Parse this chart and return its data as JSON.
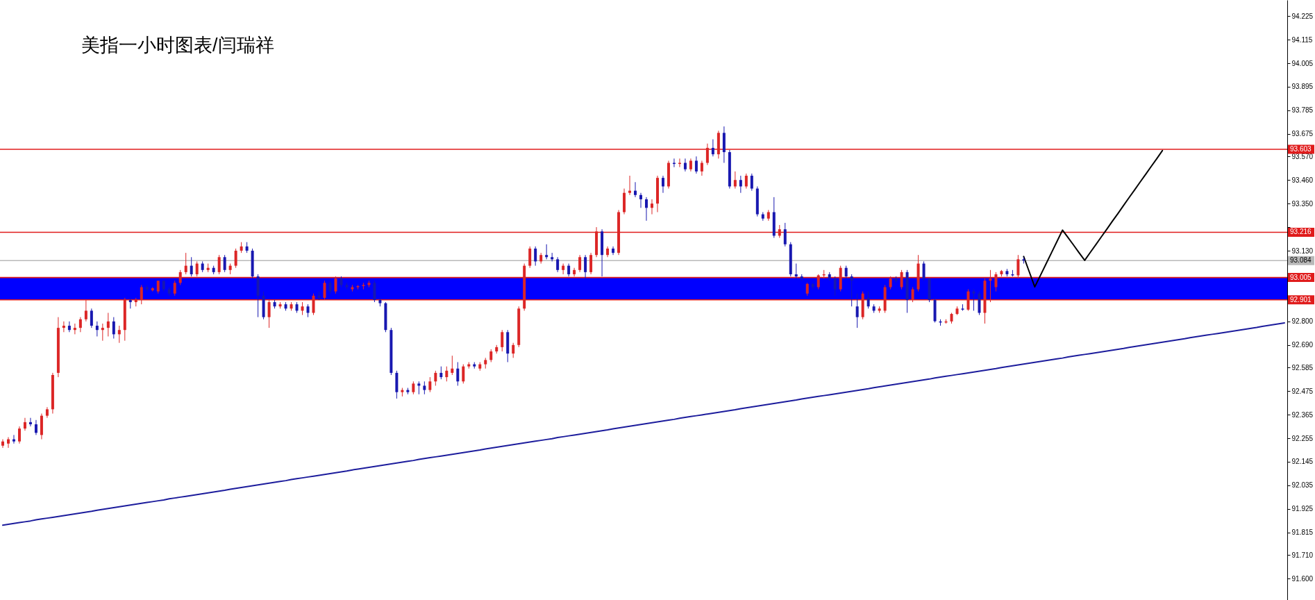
{
  "chart_data": {
    "type": "candlestick",
    "title": "美指一小时图表/闫瑞祥",
    "categories": [
      null,
      null,
      null,
      null,
      null,
      null,
      null,
      null,
      null,
      null,
      null,
      null,
      null,
      null,
      null,
      null,
      null,
      null,
      null,
      null,
      null,
      null,
      null,
      null,
      null,
      null,
      null,
      null,
      null,
      null,
      null,
      null,
      null,
      null,
      null,
      null,
      null,
      null,
      null,
      null,
      null,
      null,
      null,
      null,
      null,
      null,
      null,
      null,
      null,
      null,
      null,
      null,
      null,
      null,
      null,
      null,
      null,
      null,
      null,
      null,
      null,
      null,
      null,
      null,
      null,
      null,
      null,
      null,
      null,
      null,
      null,
      null,
      null,
      null,
      null,
      null,
      null,
      null,
      null,
      null,
      null,
      null,
      null,
      null,
      null,
      null,
      null,
      null,
      null,
      null,
      null,
      null,
      null,
      null,
      null,
      null,
      null,
      null,
      null,
      null,
      null,
      null,
      null,
      null,
      null,
      null,
      null,
      null,
      null,
      null,
      null,
      null,
      null,
      null,
      null,
      null,
      null,
      null,
      null,
      null,
      null,
      null,
      null,
      null,
      null,
      null,
      null,
      null,
      null,
      null,
      null,
      null,
      null,
      null,
      null,
      null,
      null,
      null,
      null,
      null,
      null,
      null,
      null,
      null,
      null,
      null,
      null,
      null,
      null,
      null,
      null,
      null,
      null,
      null,
      null,
      null,
      null,
      null,
      null,
      null,
      null,
      null,
      null,
      null,
      null,
      null,
      null,
      null,
      null,
      null,
      null,
      null,
      null,
      null,
      null,
      null,
      null,
      null,
      null,
      null,
      null,
      null,
      null,
      null,
      null,
      null,
      null,
      null,
      null,
      null,
      null,
      null,
      null,
      null,
      null,
      null,
      null,
      null,
      null,
      null,
      null,
      null,
      null,
      null,
      null,
      null,
      null,
      null,
      null,
      null,
      null,
      null,
      null,
      null,
      null,
      null,
      null,
      null,
      null,
      null,
      null,
      null,
      null,
      null,
      null,
      null,
      null,
      null,
      null,
      null,
      null,
      null
    ],
    "ohlc": [
      [
        92.22,
        92.25,
        92.21,
        92.24
      ],
      [
        92.23,
        92.26,
        92.21,
        92.25
      ],
      [
        92.25,
        92.27,
        92.23,
        92.24
      ],
      [
        92.24,
        92.31,
        92.23,
        92.3
      ],
      [
        92.3,
        92.35,
        92.29,
        92.33
      ],
      [
        92.33,
        92.35,
        92.31,
        92.32
      ],
      [
        92.32,
        92.34,
        92.27,
        92.28
      ],
      [
        92.27,
        92.37,
        92.25,
        92.36
      ],
      [
        92.36,
        92.4,
        92.35,
        92.39
      ],
      [
        92.39,
        92.56,
        92.37,
        92.55
      ],
      [
        92.56,
        92.82,
        92.54,
        92.77
      ],
      [
        92.77,
        92.8,
        92.75,
        92.78
      ],
      [
        92.78,
        92.8,
        92.75,
        92.76
      ],
      [
        92.76,
        92.79,
        92.74,
        92.77
      ],
      [
        92.77,
        92.82,
        92.75,
        92.81
      ],
      [
        92.81,
        92.9,
        92.8,
        92.85
      ],
      [
        92.85,
        92.86,
        92.77,
        92.78
      ],
      [
        92.78,
        92.8,
        92.73,
        92.76
      ],
      [
        92.76,
        92.79,
        92.71,
        92.77
      ],
      [
        92.77,
        92.84,
        92.73,
        92.8
      ],
      [
        92.8,
        92.82,
        92.72,
        92.74
      ],
      [
        92.74,
        92.78,
        92.7,
        92.76
      ],
      [
        92.76,
        92.91,
        92.71,
        92.9
      ],
      [
        92.9,
        92.91,
        92.86,
        92.89
      ],
      [
        92.89,
        92.91,
        92.87,
        92.9
      ],
      [
        92.9,
        92.97,
        92.88,
        92.96
      ],
      [
        92.96,
        92.97,
        92.94,
        92.95
      ],
      [
        92.945,
        92.96,
        92.94,
        92.955
      ],
      [
        92.94,
        92.99,
        92.93,
        92.99
      ],
      [
        92.99,
        92.99,
        92.94,
        92.95
      ],
      [
        92.95,
        92.96,
        92.92,
        92.93
      ],
      [
        92.93,
        92.99,
        92.92,
        92.98
      ],
      [
        92.98,
        93.04,
        92.97,
        93.03
      ],
      [
        93.03,
        93.12,
        93.02,
        93.06
      ],
      [
        93.06,
        93.1,
        93.01,
        93.02
      ],
      [
        93.02,
        93.08,
        93.01,
        93.07
      ],
      [
        93.07,
        93.08,
        93.03,
        93.04
      ],
      [
        93.04,
        93.07,
        93.03,
        93.05
      ],
      [
        93.05,
        93.06,
        93.02,
        93.03
      ],
      [
        93.03,
        93.11,
        93.02,
        93.1
      ],
      [
        93.1,
        93.11,
        93.03,
        93.04
      ],
      [
        93.04,
        93.07,
        93.02,
        93.06
      ],
      [
        93.06,
        93.14,
        93.05,
        93.13
      ],
      [
        93.13,
        93.17,
        93.12,
        93.15
      ],
      [
        93.15,
        93.17,
        93.12,
        93.13
      ],
      [
        93.13,
        93.14,
        93.0,
        93.01
      ],
      [
        93.01,
        93.02,
        92.82,
        92.92
      ],
      [
        92.92,
        92.94,
        92.81,
        92.82
      ],
      [
        92.82,
        92.9,
        92.77,
        92.89
      ],
      [
        92.89,
        92.9,
        92.86,
        92.87
      ],
      [
        92.87,
        92.89,
        92.86,
        92.88
      ],
      [
        92.88,
        92.89,
        92.85,
        92.86
      ],
      [
        92.86,
        92.89,
        92.85,
        92.88
      ],
      [
        92.88,
        92.89,
        92.84,
        92.85
      ],
      [
        92.85,
        92.89,
        92.83,
        92.87
      ],
      [
        92.87,
        92.88,
        92.82,
        92.84
      ],
      [
        92.84,
        92.93,
        92.83,
        92.92
      ],
      [
        92.92,
        92.94,
        92.9,
        92.91
      ],
      [
        92.91,
        92.99,
        92.9,
        92.98
      ],
      [
        92.98,
        92.99,
        92.93,
        92.94
      ],
      [
        92.94,
        93.01,
        92.93,
        93.0
      ],
      [
        93.0,
        93.01,
        92.96,
        92.97
      ],
      [
        92.97,
        92.98,
        92.95,
        92.96
      ],
      [
        92.95,
        92.97,
        92.94,
        92.96
      ],
      [
        92.96,
        92.97,
        92.95,
        92.965
      ],
      [
        92.965,
        92.98,
        92.95,
        92.97
      ],
      [
        92.97,
        92.99,
        92.96,
        92.98
      ],
      [
        92.98,
        92.99,
        92.89,
        92.9
      ],
      [
        92.9,
        92.91,
        92.87,
        92.885
      ],
      [
        92.885,
        92.89,
        92.75,
        92.76
      ],
      [
        92.76,
        92.77,
        92.55,
        92.56
      ],
      [
        92.56,
        92.57,
        92.44,
        92.47
      ],
      [
        92.47,
        92.49,
        92.45,
        92.48
      ],
      [
        92.48,
        92.49,
        92.46,
        92.47
      ],
      [
        92.47,
        92.52,
        92.46,
        92.51
      ],
      [
        92.51,
        92.52,
        92.46,
        92.5
      ],
      [
        92.5,
        92.52,
        92.46,
        92.48
      ],
      [
        92.48,
        92.54,
        92.47,
        92.52
      ],
      [
        92.52,
        92.57,
        92.5,
        92.56
      ],
      [
        92.56,
        92.59,
        92.53,
        92.54
      ],
      [
        92.54,
        92.59,
        92.52,
        92.57
      ],
      [
        92.56,
        92.64,
        92.55,
        92.58
      ],
      [
        92.58,
        92.61,
        92.5,
        92.52
      ],
      [
        92.52,
        92.6,
        92.51,
        92.59
      ],
      [
        92.59,
        92.61,
        92.58,
        92.6
      ],
      [
        92.6,
        92.61,
        92.58,
        92.59
      ],
      [
        92.58,
        92.61,
        92.57,
        92.6
      ],
      [
        92.6,
        92.63,
        92.58,
        92.62
      ],
      [
        92.62,
        92.67,
        92.61,
        92.66
      ],
      [
        92.66,
        92.69,
        92.65,
        92.68
      ],
      [
        92.68,
        92.76,
        92.66,
        92.75
      ],
      [
        92.75,
        92.76,
        92.61,
        92.65
      ],
      [
        92.65,
        92.7,
        92.63,
        92.69
      ],
      [
        92.69,
        92.87,
        92.68,
        92.86
      ],
      [
        92.86,
        93.07,
        92.85,
        93.06
      ],
      [
        93.06,
        93.15,
        93.05,
        93.14
      ],
      [
        93.14,
        93.15,
        93.06,
        93.08
      ],
      [
        93.08,
        93.12,
        93.07,
        93.11
      ],
      [
        93.11,
        93.16,
        93.09,
        93.1
      ],
      [
        93.1,
        93.12,
        93.08,
        93.09
      ],
      [
        93.09,
        93.1,
        93.03,
        93.04
      ],
      [
        93.04,
        93.07,
        93.02,
        93.06
      ],
      [
        93.06,
        93.07,
        93.01,
        93.02
      ],
      [
        93.02,
        93.05,
        93.01,
        93.04
      ],
      [
        93.04,
        93.11,
        93.03,
        93.1
      ],
      [
        93.1,
        93.11,
        93.0,
        93.03
      ],
      [
        93.03,
        93.12,
        93.02,
        93.11
      ],
      [
        93.11,
        93.24,
        93.1,
        93.22
      ],
      [
        93.22,
        93.23,
        93.01,
        93.11
      ],
      [
        93.11,
        93.15,
        93.1,
        93.14
      ],
      [
        93.14,
        93.15,
        93.11,
        93.12
      ],
      [
        93.12,
        93.32,
        93.11,
        93.31
      ],
      [
        93.31,
        93.42,
        93.3,
        93.4
      ],
      [
        93.4,
        93.48,
        93.39,
        93.41
      ],
      [
        93.41,
        93.45,
        93.38,
        93.39
      ],
      [
        93.39,
        93.4,
        93.33,
        93.37
      ],
      [
        93.37,
        93.38,
        93.27,
        93.33
      ],
      [
        93.33,
        93.37,
        93.3,
        93.35
      ],
      [
        93.35,
        93.48,
        93.31,
        93.47
      ],
      [
        93.47,
        93.48,
        93.4,
        93.43
      ],
      [
        93.43,
        93.55,
        93.42,
        93.54
      ],
      [
        93.54,
        93.56,
        93.52,
        93.535
      ],
      [
        93.535,
        93.56,
        93.52,
        93.54
      ],
      [
        93.54,
        93.56,
        93.5,
        93.51
      ],
      [
        93.51,
        93.56,
        93.5,
        93.55
      ],
      [
        93.55,
        93.57,
        93.49,
        93.5
      ],
      [
        93.5,
        93.55,
        93.48,
        93.54
      ],
      [
        93.54,
        93.63,
        93.53,
        93.61
      ],
      [
        93.61,
        93.65,
        93.57,
        93.58
      ],
      [
        93.58,
        93.69,
        93.56,
        93.68
      ],
      [
        93.68,
        93.71,
        93.54,
        93.59
      ],
      [
        93.59,
        93.6,
        93.42,
        93.43
      ],
      [
        93.43,
        93.5,
        93.42,
        93.46
      ],
      [
        93.46,
        93.48,
        93.4,
        93.43
      ],
      [
        93.43,
        93.49,
        93.42,
        93.48
      ],
      [
        93.48,
        93.49,
        93.41,
        93.42
      ],
      [
        93.42,
        93.43,
        93.29,
        93.3
      ],
      [
        93.3,
        93.31,
        93.27,
        93.28
      ],
      [
        93.28,
        93.32,
        93.27,
        93.31
      ],
      [
        93.31,
        93.38,
        93.19,
        93.2
      ],
      [
        93.2,
        93.25,
        93.19,
        93.23
      ],
      [
        93.23,
        93.26,
        93.15,
        93.16
      ],
      [
        93.16,
        93.17,
        93.01,
        93.02
      ],
      [
        93.02,
        93.07,
        93.0,
        93.01
      ],
      [
        93.01,
        93.02,
        92.99,
        93.0
      ],
      [
        92.93,
        92.98,
        92.92,
        92.975
      ],
      [
        92.975,
        92.98,
        92.95,
        92.96
      ],
      [
        92.96,
        93.02,
        92.95,
        93.015
      ],
      [
        93.015,
        93.04,
        93.0,
        93.02
      ],
      [
        93.02,
        93.03,
        92.99,
        93.0
      ],
      [
        93.0,
        93.01,
        92.92,
        92.95
      ],
      [
        92.95,
        93.06,
        92.94,
        93.05
      ],
      [
        93.05,
        93.06,
        93.0,
        93.01
      ],
      [
        93.01,
        93.02,
        92.87,
        92.99
      ],
      [
        92.87,
        92.93,
        92.77,
        92.82
      ],
      [
        92.82,
        92.94,
        92.81,
        92.93
      ],
      [
        92.91,
        92.94,
        92.86,
        92.87
      ],
      [
        92.87,
        92.88,
        92.84,
        92.85
      ],
      [
        92.85,
        92.87,
        92.84,
        92.86
      ],
      [
        92.85,
        92.97,
        92.84,
        92.96
      ],
      [
        92.96,
        93.01,
        92.95,
        93.0
      ],
      [
        93.0,
        93.01,
        92.98,
        92.99
      ],
      [
        92.96,
        93.04,
        92.95,
        93.03
      ],
      [
        93.03,
        93.04,
        92.84,
        92.9
      ],
      [
        92.9,
        92.96,
        92.89,
        92.95
      ],
      [
        92.95,
        93.11,
        92.94,
        93.07
      ],
      [
        93.07,
        93.08,
        92.99,
        93.0
      ],
      [
        93.0,
        93.0,
        92.89,
        92.9
      ],
      [
        92.9,
        92.91,
        92.795,
        92.801
      ],
      [
        92.8,
        92.81,
        92.78,
        92.795
      ],
      [
        92.795,
        92.81,
        92.79,
        92.8
      ],
      [
        92.8,
        92.84,
        92.79,
        92.835
      ],
      [
        92.835,
        92.87,
        92.83,
        92.86
      ],
      [
        92.86,
        92.88,
        92.85,
        92.855
      ],
      [
        92.855,
        92.95,
        92.85,
        92.94
      ],
      [
        92.94,
        92.95,
        92.85,
        92.93
      ],
      [
        92.93,
        92.94,
        92.83,
        92.84
      ],
      [
        92.84,
        93.0,
        92.79,
        92.99
      ],
      [
        92.99,
        93.04,
        92.89,
        93.0
      ],
      [
        92.96,
        93.03,
        92.94,
        93.02
      ],
      [
        93.02,
        93.04,
        93.01,
        93.035
      ],
      [
        93.035,
        93.045,
        93.01,
        93.02
      ],
      [
        93.02,
        93.04,
        93.01,
        93.015
      ],
      [
        93.015,
        93.11,
        93.0,
        93.09
      ],
      [
        93.09,
        93.1,
        93.07,
        93.084
      ],
      null,
      null,
      null,
      null,
      null,
      null,
      null,
      null,
      null,
      null,
      null,
      null,
      null,
      null,
      null,
      null,
      null,
      null,
      null,
      null,
      null,
      null,
      null,
      null,
      null,
      null,
      null,
      null,
      null,
      null,
      null,
      null,
      null,
      null,
      null,
      null,
      null,
      null,
      null,
      null,
      null,
      null,
      null,
      null,
      null,
      null,
      null
    ],
    "colors": [
      "#dc2626",
      "#dc2626",
      "#1818b0",
      "#dc2626",
      "#dc2626",
      "#1818b0",
      "#1818b0",
      "#dc2626",
      "#dc2626",
      "#dc2626",
      "#dc2626",
      "#dc2626",
      "#1818b0",
      "#dc2626",
      "#dc2626",
      "#dc2626",
      "#1818b0",
      "#1818b0",
      "#dc2626",
      "#dc2626",
      "#1818b0",
      "#dc2626",
      "#dc2626",
      "#1818b0",
      "#dc2626",
      "#dc2626",
      "#1818b0",
      "#dc2626",
      "#dc2626",
      "#1818b0",
      "#1818b0",
      "#dc2626",
      "#dc2626",
      "#dc2626",
      "#1818b0",
      "#dc2626",
      "#1818b0",
      "#dc2626",
      "#1818b0",
      "#dc2626",
      "#1818b0",
      "#dc2626",
      "#dc2626",
      "#dc2626",
      "#1818b0",
      "#1818b0",
      "#1818b0",
      "#1818b0",
      "#dc2626",
      "#1818b0",
      "#dc2626",
      "#1818b0",
      "#dc2626",
      "#1818b0",
      "#dc2626",
      "#1818b0",
      "#dc2626",
      "#1818b0",
      "#dc2626",
      "#1818b0",
      "#dc2626",
      "#1818b0",
      "#1818b0",
      "#dc2626",
      "#dc2626",
      "#dc2626",
      "#dc2626",
      "#1818b0",
      "#1818b0",
      "#1818b0",
      "#1818b0",
      "#1818b0",
      "#dc2626",
      "#1818b0",
      "#dc2626",
      "#1818b0",
      "#1818b0",
      "#dc2626",
      "#dc2626",
      "#1818b0",
      "#dc2626",
      "#dc2626",
      "#1818b0",
      "#dc2626",
      "#dc2626",
      "#1818b0",
      "#dc2626",
      "#dc2626",
      "#dc2626",
      "#dc2626",
      "#dc2626",
      "#1818b0",
      "#dc2626",
      "#dc2626",
      "#dc2626",
      "#dc2626",
      "#1818b0",
      "#dc2626",
      "#1818b0",
      "#1818b0",
      "#1818b0",
      "#dc2626",
      "#1818b0",
      "#dc2626",
      "#dc2626",
      "#1818b0",
      "#dc2626",
      "#dc2626",
      "#1818b0",
      "#dc2626",
      "#1818b0",
      "#dc2626",
      "#dc2626",
      "#dc2626",
      "#1818b0",
      "#1818b0",
      "#1818b0",
      "#dc2626",
      "#dc2626",
      "#1818b0",
      "#dc2626",
      "#1818b0",
      "#dc2626",
      "#1818b0",
      "#dc2626",
      "#1818b0",
      "#dc2626",
      "#dc2626",
      "#1818b0",
      "#dc2626",
      "#1818b0",
      "#1818b0",
      "#dc2626",
      "#1818b0",
      "#dc2626",
      "#1818b0",
      "#1818b0",
      "#1818b0",
      "#dc2626",
      "#1818b0",
      "#dc2626",
      "#1818b0",
      "#1818b0",
      "#1818b0",
      "#1818b0",
      "#dc2626",
      "#1818b0",
      "#dc2626",
      "#dc2626",
      "#1818b0",
      "#1818b0",
      "#dc2626",
      "#1818b0",
      "#1818b0",
      "#1818b0",
      "#dc2626",
      "#1818b0",
      "#1818b0",
      "#dc2626",
      "#dc2626",
      "#dc2626",
      "#1818b0",
      "#dc2626",
      "#1818b0",
      "#dc2626",
      "#dc2626",
      "#1818b0",
      "#1818b0",
      "#1818b0",
      "#1818b0",
      "#dc2626",
      "#dc2626",
      "#dc2626",
      "#1818b0",
      "#dc2626",
      "#1818b0",
      "#1818b0",
      "#dc2626",
      "#dc2626",
      "#dc2626",
      "#dc2626",
      "#1818b0",
      "#1818b0",
      "#dc2626",
      "#1818b0",
      null,
      null,
      null,
      null,
      null,
      null,
      null,
      null,
      null,
      null,
      null,
      null,
      null,
      null,
      null,
      null,
      null,
      null,
      null,
      null,
      null,
      null,
      null,
      null,
      null,
      null,
      null,
      null,
      null,
      null,
      null,
      null,
      null,
      null,
      null,
      null,
      null,
      null,
      null,
      null,
      null,
      null,
      null,
      null,
      null,
      null,
      null
    ],
    "series": [
      {
        "type": "line",
        "color": "#1c1c9c",
        "values": [
          91.849,
          91.853,
          91.857,
          91.861,
          91.865,
          91.869,
          91.874,
          91.878,
          91.882,
          91.886,
          91.89,
          91.894,
          91.898,
          91.902,
          91.906,
          91.91,
          91.914,
          91.919,
          91.923,
          91.927,
          91.931,
          91.935,
          91.939,
          91.943,
          91.947,
          91.951,
          91.955,
          91.959,
          91.963,
          91.967,
          91.972,
          91.976,
          91.98,
          91.984,
          91.988,
          91.992,
          91.996,
          92.0,
          92.004,
          92.008,
          92.012,
          92.017,
          92.021,
          92.025,
          92.029,
          92.033,
          92.037,
          92.041,
          92.045,
          92.049,
          92.053,
          92.057,
          92.062,
          92.066,
          92.07,
          92.074,
          92.078,
          92.082,
          92.086,
          92.09,
          92.094,
          92.098,
          92.102,
          92.107,
          92.111,
          92.115,
          92.119,
          92.123,
          92.127,
          92.131,
          92.135,
          92.139,
          92.143,
          92.147,
          92.151,
          92.156,
          92.16,
          92.164,
          92.168,
          92.172,
          92.176,
          92.18,
          92.184,
          92.188,
          92.192,
          92.196,
          92.2,
          92.205,
          92.209,
          92.213,
          92.217,
          92.221,
          92.225,
          92.229,
          92.233,
          92.237,
          92.241,
          92.245,
          92.249,
          92.253,
          92.258,
          92.262,
          92.266,
          92.27,
          92.274,
          92.278,
          92.282,
          92.286,
          92.29,
          92.294,
          92.299,
          92.303,
          92.307,
          92.311,
          92.315,
          92.319,
          92.323,
          92.327,
          92.331,
          92.335,
          92.339,
          92.343,
          92.348,
          92.352,
          92.356,
          92.36,
          92.364,
          92.368,
          92.372,
          92.376,
          92.38,
          92.384,
          92.388,
          92.393,
          92.397,
          92.401,
          92.405,
          92.409,
          92.413,
          92.417,
          92.421,
          92.425,
          92.429,
          92.433,
          92.438,
          92.442,
          92.446,
          92.45,
          92.454,
          92.458,
          92.462,
          92.466,
          92.47,
          92.474,
          92.478,
          92.482,
          92.486,
          92.491,
          92.495,
          92.499,
          92.503,
          92.507,
          92.511,
          92.515,
          92.519,
          92.523,
          92.527,
          92.531,
          92.536,
          92.54,
          92.544,
          92.548,
          92.552,
          92.556,
          92.56,
          92.564,
          92.568,
          92.572,
          92.576,
          92.58,
          92.585,
          92.589,
          92.593,
          92.597,
          92.601,
          92.605,
          92.609,
          92.613,
          92.617,
          92.621,
          92.625,
          92.629,
          92.634,
          92.638,
          92.642,
          92.646,
          92.65,
          92.654,
          92.658,
          92.662,
          92.666,
          92.67,
          92.674,
          92.679,
          92.683,
          92.687,
          92.691,
          92.695,
          92.699,
          92.703,
          92.707,
          92.711,
          92.715,
          92.719,
          92.724,
          92.728,
          92.732,
          92.736,
          92.74,
          92.744,
          92.748,
          92.752,
          92.756,
          92.76,
          92.764,
          92.768,
          92.772,
          92.777,
          92.781,
          92.785,
          92.789,
          92.793
        ]
      },
      {
        "type": "line",
        "color": "#000000",
        "values": [
          null,
          null,
          null,
          null,
          null,
          null,
          null,
          null,
          null,
          null,
          null,
          null,
          null,
          null,
          null,
          null,
          null,
          null,
          null,
          null,
          null,
          null,
          null,
          null,
          null,
          null,
          null,
          null,
          null,
          null,
          null,
          null,
          null,
          null,
          null,
          null,
          null,
          null,
          null,
          null,
          null,
          null,
          null,
          null,
          null,
          null,
          null,
          null,
          null,
          null,
          null,
          null,
          null,
          null,
          null,
          null,
          null,
          null,
          null,
          null,
          null,
          null,
          null,
          null,
          null,
          null,
          null,
          null,
          null,
          null,
          null,
          null,
          null,
          null,
          null,
          null,
          null,
          null,
          null,
          null,
          null,
          null,
          null,
          null,
          null,
          null,
          null,
          null,
          null,
          null,
          null,
          null,
          null,
          null,
          null,
          null,
          null,
          null,
          null,
          null,
          null,
          null,
          null,
          null,
          null,
          null,
          null,
          null,
          null,
          null,
          null,
          null,
          null,
          null,
          null,
          null,
          null,
          null,
          null,
          null,
          null,
          null,
          null,
          null,
          null,
          null,
          null,
          null,
          null,
          null,
          null,
          null,
          null,
          null,
          null,
          null,
          null,
          null,
          null,
          null,
          null,
          null,
          null,
          null,
          null,
          null,
          null,
          null,
          null,
          null,
          null,
          null,
          null,
          null,
          null,
          null,
          null,
          null,
          null,
          null,
          null,
          null,
          null,
          null,
          null,
          null,
          null,
          null,
          null,
          null,
          null,
          null,
          null,
          null,
          null,
          null,
          null,
          null,
          null,
          null,
          null,
          null,
          null,
          null,
          93.103,
          93.032,
          92.961,
          93.014,
          93.067,
          93.12,
          93.173,
          93.226,
          93.191,
          93.156,
          93.12,
          93.085,
          93.122,
          93.158,
          93.195,
          93.231,
          93.268,
          93.304,
          93.341,
          93.378,
          93.414,
          93.451,
          93.487,
          93.524,
          93.56,
          93.597,
          null,
          null,
          null,
          null,
          null,
          null,
          null,
          null,
          null,
          null,
          null,
          null,
          null,
          null,
          null,
          null,
          null,
          null,
          null,
          null,
          null,
          null
        ]
      }
    ],
    "ylim": [
      91.5,
      94.3
    ],
    "yticks": [
      94.225,
      94.115,
      94.005,
      93.895,
      93.785,
      93.675,
      {
        "value": 93.57,
        "label": "93.570"
      },
      {
        "value": 93.46,
        "label": "93.460"
      },
      {
        "value": 93.35,
        "label": "93.350"
      },
      {
        "value": 93.24,
        "label": null
      },
      {
        "value": 93.13,
        "label": "93.130"
      },
      {
        "value": 92.8,
        "label": "92.800"
      },
      {
        "value": 92.69,
        "label": "92.690"
      },
      92.585,
      92.475,
      92.365,
      92.255,
      92.145,
      92.035,
      91.925,
      91.815,
      {
        "value": 91.71,
        "label": "91.710"
      },
      {
        "value": 91.6,
        "label": "91.600"
      }
    ],
    "tick_labels": "y",
    "ref_lines": [
      {
        "axis": "y",
        "value": 93.603,
        "label": "93.603",
        "color": "#e01b1b"
      },
      {
        "axis": "y",
        "value": 93.216,
        "label": "93.216",
        "color": "#e01b1b"
      },
      {
        "axis": "y",
        "value": 93.084,
        "label": "93.084",
        "color": "#b9b9b9"
      },
      {
        "axis": "y",
        "value": 93.005,
        "label": "93.005",
        "color": "#e01b1b"
      },
      {
        "axis": "y",
        "value": 92.901,
        "label": "92.901",
        "color": "#e01b1b"
      }
    ],
    "bands": [
      {
        "axis": "y",
        "from": 92.901,
        "to": 93.005,
        "color": "#0000ff"
      }
    ]
  }
}
